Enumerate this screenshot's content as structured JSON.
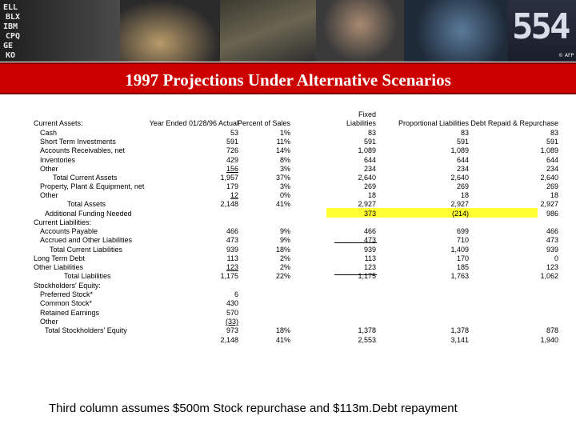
{
  "banner": {
    "ticker_lines": [
      "ELL",
      "BLX",
      "IBM",
      "CPQ",
      "GE",
      "KO"
    ],
    "big_number": "554",
    "credit": "© AFP"
  },
  "title": "1997 Projections Under Alternative Scenarios",
  "headers": {
    "col1": "Year Ended 01/28/96 Actual",
    "col2": "Percent of Sales",
    "fixed": "Fixed",
    "col3": "Liabilities",
    "col4": "Proportional Liabilities",
    "col5": "Debt Repaid & Repurchase"
  },
  "rows": [
    {
      "label": "Current Assets:",
      "c1": "",
      "c2": "",
      "c3": "",
      "c4": "",
      "c5": ""
    },
    {
      "label": "Cash",
      "c1": "53",
      "c2": "1%",
      "c3": "83",
      "c4": "83",
      "c5": "83"
    },
    {
      "label": "Short Term Investments",
      "c1": "591",
      "c2": "11%",
      "c3": "591",
      "c4": "591",
      "c5": "591"
    },
    {
      "label": "Accounts Receivables, net",
      "c1": "726",
      "c2": "14%",
      "c3": "1,089",
      "c4": "1,089",
      "c5": "1,089"
    },
    {
      "label": "Inventories",
      "c1": "429",
      "c2": "8%",
      "c3": "644",
      "c4": "644",
      "c5": "644"
    },
    {
      "label": "Other",
      "c1": "156",
      "c2": "3%",
      "c3": "234",
      "c4": "234",
      "c5": "234"
    },
    {
      "label": "Total Current Assets",
      "c1": "1,957",
      "c2": "37%",
      "c3": "2,640",
      "c4": "2,640",
      "c5": "2,640"
    },
    {
      "label": "Property, Plant & Equipment, net",
      "c1": "179",
      "c2": "3%",
      "c3": "269",
      "c4": "269",
      "c5": "269"
    },
    {
      "label": "Other",
      "c1": "12",
      "c2": "0%",
      "c3": "18",
      "c4": "18",
      "c5": "18"
    },
    {
      "label": "Total Assets",
      "c1": "2,148",
      "c2": "41%",
      "c3": "2,927",
      "c4": "2,927",
      "c5": "2,927"
    },
    {
      "label": "Additional Funding Needed",
      "c1": "",
      "c2": "",
      "c3": "373",
      "c4": "(214)",
      "c5": "986"
    },
    {
      "label": "Current Liabilities:",
      "c1": "",
      "c2": "",
      "c3": "",
      "c4": "",
      "c5": ""
    },
    {
      "label": "Accounts Payable",
      "c1": "466",
      "c2": "9%",
      "c3": "466",
      "c4": "699",
      "c5": "466"
    },
    {
      "label": "Accrued and Other Liabilities",
      "c1": "473",
      "c2": "9%",
      "c3": "473",
      "c4": "710",
      "c5": "473"
    },
    {
      "label": "Total Current Liabilities",
      "c1": "939",
      "c2": "18%",
      "c3": "939",
      "c4": "1,409",
      "c5": "939"
    },
    {
      "label": "Long Term Debt",
      "c1": "113",
      "c2": "2%",
      "c3": "113",
      "c4": "170",
      "c5": "0"
    },
    {
      "label": "Other Liabilities",
      "c1": "123",
      "c2": "2%",
      "c3": "123",
      "c4": "185",
      "c5": "123"
    },
    {
      "label": "Total Liabilities",
      "c1": "1,175",
      "c2": "22%",
      "c3": "1,175",
      "c4": "1,763",
      "c5": "1,062"
    },
    {
      "label": "Stockholders' Equity:",
      "c1": "",
      "c2": "",
      "c3": "",
      "c4": "",
      "c5": ""
    },
    {
      "label": "Preferred Stock*",
      "c1": "6",
      "c2": "",
      "c3": "",
      "c4": "",
      "c5": ""
    },
    {
      "label": "Common Stock*",
      "c1": "430",
      "c2": "",
      "c3": "",
      "c4": "",
      "c5": ""
    },
    {
      "label": "Retained Earnings",
      "c1": "570",
      "c2": "",
      "c3": "",
      "c4": "",
      "c5": ""
    },
    {
      "label": "Other",
      "c1": "(33)",
      "c2": "",
      "c3": "",
      "c4": "",
      "c5": ""
    },
    {
      "label": "Total Stockholders' Equity",
      "c1": "973",
      "c2": "18%",
      "c3": "1,378",
      "c4": "1,378",
      "c5": "878"
    },
    {
      "label": "",
      "c1": "2,148",
      "c2": "41%",
      "c3": "2,553",
      "c4": "3,141",
      "c5": "1,940"
    }
  ],
  "footnote": "Third column assumes $500m Stock repurchase and $113m.Debt repayment",
  "colors": {
    "title_bar": "#cc0000",
    "highlight": "#ffff33"
  }
}
